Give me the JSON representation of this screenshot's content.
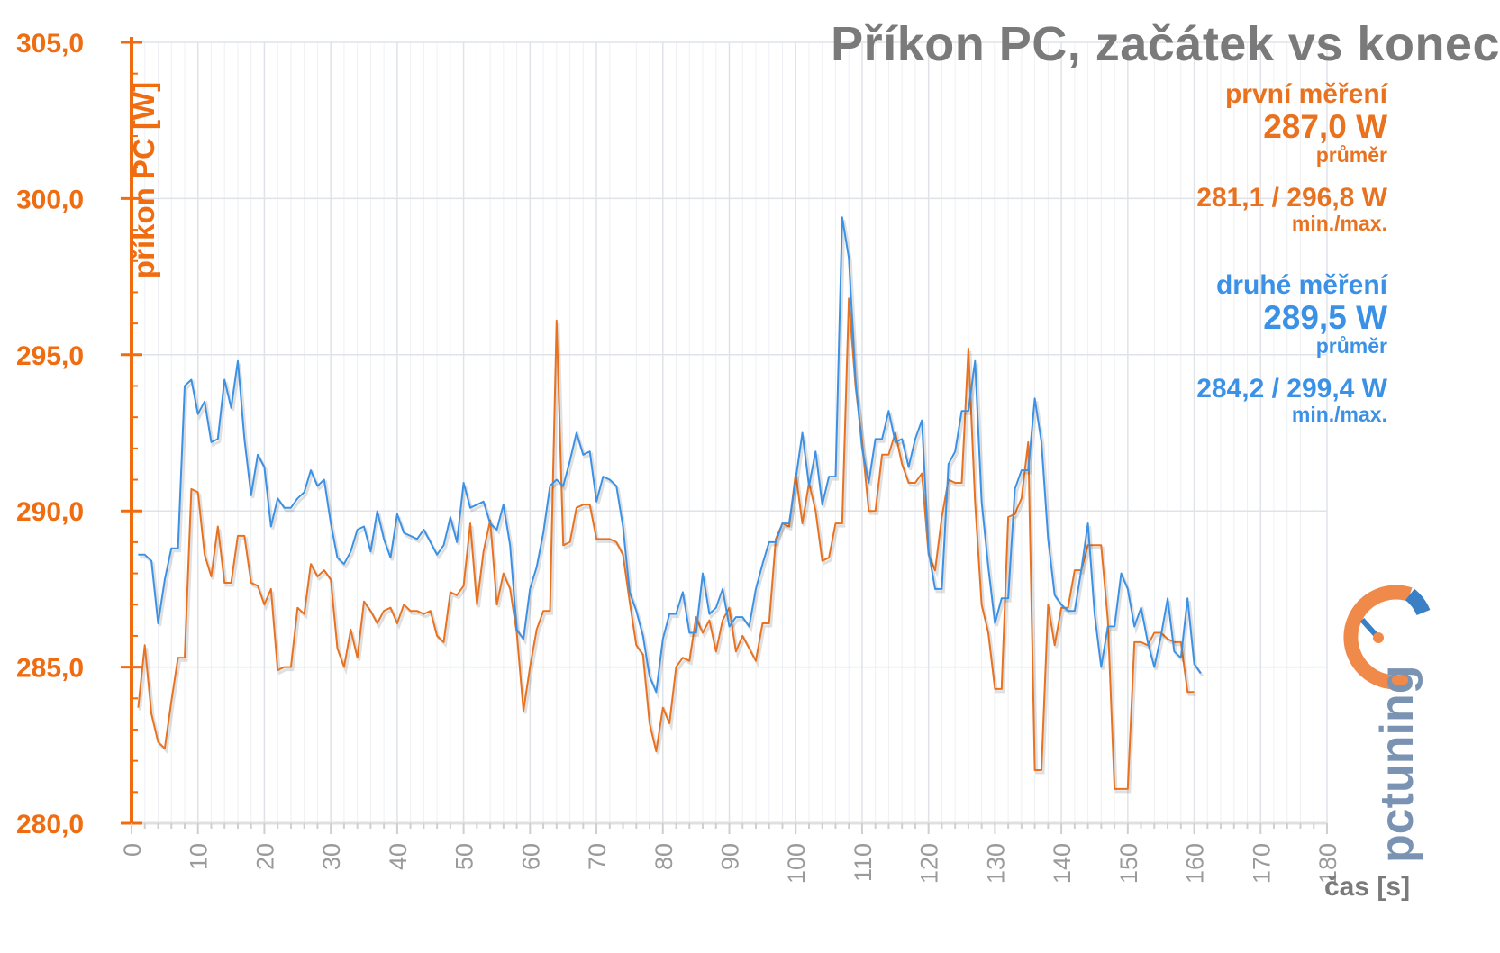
{
  "chart_data": {
    "type": "line",
    "title": "Příkon PC, začátek vs konec",
    "xlabel": "čas [s]",
    "ylabel": "příkon PC [W]",
    "xlim": [
      0,
      180
    ],
    "ylim": [
      280,
      305
    ],
    "xticks": [
      "0",
      "10",
      "20",
      "30",
      "40",
      "50",
      "60",
      "70",
      "80",
      "90",
      "100",
      "110",
      "120",
      "130",
      "140",
      "150",
      "160",
      "170",
      "180"
    ],
    "yticks": [
      "280,0",
      "285,0",
      "290,0",
      "295,0",
      "300,0",
      "305,0"
    ],
    "grid": true,
    "series": [
      {
        "name": "první měření",
        "color": "#e8721f",
        "values": [
          283.7,
          285.7,
          283.5,
          282.6,
          282.4,
          283.9,
          285.3,
          285.3,
          290.7,
          290.6,
          288.6,
          287.9,
          289.5,
          287.7,
          287.7,
          289.2,
          289.2,
          287.7,
          287.6,
          287.0,
          287.5,
          284.9,
          285.0,
          285.0,
          286.9,
          286.7,
          288.3,
          287.9,
          288.1,
          287.8,
          285.6,
          285.0,
          286.2,
          285.3,
          287.1,
          286.8,
          286.4,
          286.8,
          286.9,
          286.4,
          287.0,
          286.8,
          286.8,
          286.7,
          286.8,
          286.0,
          285.8,
          287.4,
          287.3,
          287.6,
          289.6,
          287.0,
          288.7,
          289.7,
          287.0,
          288.0,
          287.5,
          286.1,
          283.6,
          285.0,
          286.2,
          286.8,
          286.8,
          296.1,
          288.9,
          289.0,
          290.1,
          290.2,
          290.2,
          289.1,
          289.1,
          289.1,
          289.0,
          288.6,
          287.1,
          285.7,
          285.4,
          283.2,
          282.3,
          283.7,
          283.2,
          285.0,
          285.3,
          285.2,
          286.6,
          286.1,
          286.5,
          285.5,
          286.5,
          286.9,
          285.5,
          286.0,
          285.6,
          285.2,
          286.4,
          286.4,
          289.1,
          289.6,
          289.5,
          291.2,
          289.6,
          290.9,
          290.0,
          288.4,
          288.5,
          289.6,
          289.6,
          296.8,
          294.0,
          292.2,
          290.0,
          290.0,
          291.8,
          291.8,
          292.5,
          291.5,
          290.9,
          290.9,
          291.2,
          288.6,
          288.1,
          289.8,
          291.0,
          290.9,
          290.9,
          295.2,
          290.3,
          287.0,
          286.1,
          284.3,
          284.3,
          289.8,
          289.9,
          290.4,
          292.2,
          281.7,
          281.7,
          287.0,
          285.7,
          286.9,
          286.9,
          288.1,
          288.1,
          288.9,
          288.9,
          288.9,
          286.5,
          281.1,
          281.1,
          281.1,
          285.8,
          285.8,
          285.7,
          286.1,
          286.1,
          285.9,
          285.8,
          285.8,
          284.2,
          284.2
        ]
      },
      {
        "name": "druhé měření",
        "color": "#3b91e6",
        "values": [
          288.6,
          288.6,
          288.4,
          286.4,
          287.8,
          288.8,
          288.8,
          294.0,
          294.2,
          293.1,
          293.5,
          292.2,
          292.3,
          294.2,
          293.3,
          294.8,
          292.3,
          290.5,
          291.8,
          291.4,
          289.5,
          290.4,
          290.1,
          290.1,
          290.4,
          290.6,
          291.3,
          290.8,
          291.0,
          289.6,
          288.5,
          288.3,
          288.7,
          289.4,
          289.5,
          288.7,
          290.0,
          289.1,
          288.5,
          289.9,
          289.3,
          289.2,
          289.1,
          289.4,
          289.0,
          288.6,
          288.9,
          289.8,
          289.0,
          290.9,
          290.1,
          290.2,
          290.3,
          289.6,
          289.4,
          290.2,
          288.9,
          286.2,
          285.9,
          287.5,
          288.2,
          289.3,
          290.8,
          291.0,
          290.8,
          291.6,
          292.5,
          291.8,
          291.9,
          290.3,
          291.1,
          291.0,
          290.8,
          289.5,
          287.4,
          286.8,
          286.0,
          284.7,
          284.2,
          285.9,
          286.7,
          286.7,
          287.4,
          286.1,
          286.1,
          288.0,
          286.7,
          286.9,
          287.5,
          286.3,
          286.6,
          286.6,
          286.3,
          287.5,
          288.3,
          289.0,
          289.0,
          289.6,
          289.6,
          291.0,
          292.5,
          290.8,
          291.9,
          290.2,
          291.1,
          291.1,
          299.4,
          298.1,
          294.2,
          292.0,
          290.9,
          292.3,
          292.3,
          293.2,
          292.2,
          292.3,
          291.4,
          292.3,
          292.9,
          288.7,
          287.5,
          287.5,
          291.5,
          291.9,
          293.2,
          293.2,
          294.8,
          290.3,
          288.2,
          286.4,
          287.2,
          287.2,
          290.7,
          291.3,
          291.3,
          293.6,
          292.2,
          289.1,
          287.3,
          287.0,
          286.8,
          286.8,
          288.1,
          289.6,
          286.7,
          285.0,
          286.3,
          286.3,
          288.0,
          287.5,
          286.3,
          286.9,
          285.8,
          285.0,
          286.0,
          287.2,
          285.5,
          285.3,
          287.2,
          285.1,
          284.8
        ]
      }
    ],
    "stats": {
      "s1": {
        "label": "první měření",
        "avg": "287,0 W",
        "avg_label": "průměr",
        "minmax": "281,1 / 296,8 W",
        "minmax_label": "min./max."
      },
      "s2": {
        "label": "druhé měření",
        "avg": "289,5 W",
        "avg_label": "průměr",
        "minmax": "284,2 / 299,4 W",
        "minmax_label": "min./max."
      }
    }
  },
  "logo": {
    "text": "pctuning"
  }
}
